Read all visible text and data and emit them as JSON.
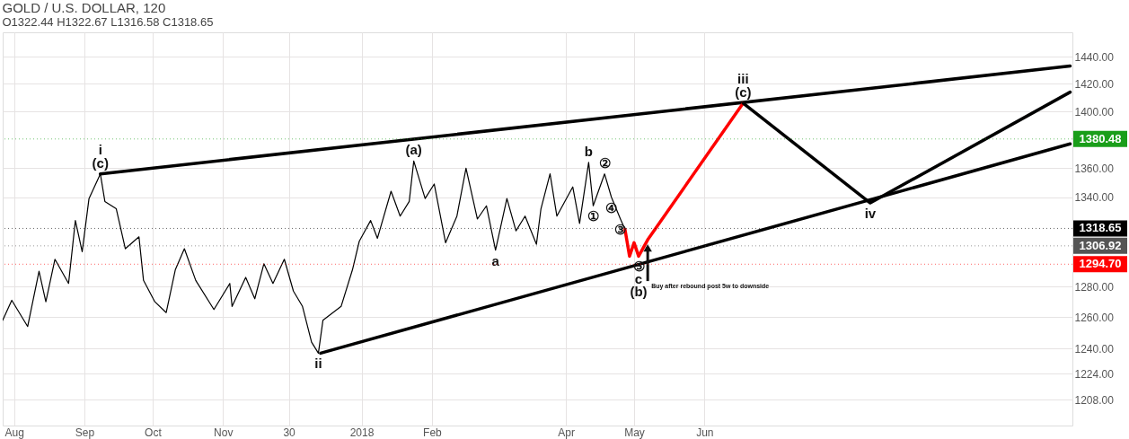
{
  "chart_data": {
    "type": "line",
    "title": "GOLD / U.S. DOLLAR, 120",
    "subtitle": "O1322.44  H1322.67  L1316.58  C1318.65",
    "log": "y",
    "grid": true,
    "xlim": [
      "2017-07-27",
      "2018-11-10"
    ],
    "xticks": [
      {
        "value": "2017-08-01",
        "label": "Aug"
      },
      {
        "value": "2017-09-01",
        "label": "Sep"
      },
      {
        "value": "2017-10-01",
        "label": "Oct"
      },
      {
        "value": "2017-11-01",
        "label": "Nov"
      },
      {
        "value": "2017-11-30",
        "label": "30"
      },
      {
        "value": "2018-01-01",
        "label": "2018"
      },
      {
        "value": "2018-02-01",
        "label": "Feb"
      },
      {
        "value": "2018-04-01",
        "label": "Apr"
      },
      {
        "value": "2018-05-01",
        "label": "May"
      },
      {
        "value": "2018-06-01",
        "label": "Jun"
      }
    ],
    "ylim": [
      1192,
      1458
    ],
    "yticks": [
      {
        "value": 1208,
        "label": "1208.00"
      },
      {
        "value": 1224,
        "label": "1224.00"
      },
      {
        "value": 1240,
        "label": "1240.00"
      },
      {
        "value": 1260,
        "label": "1260.00"
      },
      {
        "value": 1280,
        "label": "1280.00"
      },
      {
        "value": 1340,
        "label": "1340.00"
      },
      {
        "value": 1360,
        "label": "1360.00"
      },
      {
        "value": 1400,
        "label": "1400.00"
      },
      {
        "value": 1420,
        "label": "1420.00"
      },
      {
        "value": 1440,
        "label": "1440.00"
      }
    ],
    "series": [
      {
        "color": "#000000",
        "x": [
          "2017-07-27",
          "2017-07-31",
          "2017-08-07",
          "2017-08-12",
          "2017-08-15",
          "2017-08-19",
          "2017-08-25",
          "2017-08-28",
          "2017-08-31",
          "2017-09-03",
          "2017-09-08",
          "2017-09-10",
          "2017-09-15",
          "2017-09-19",
          "2017-09-25",
          "2017-09-27",
          "2017-10-02",
          "2017-10-07",
          "2017-10-11",
          "2017-10-15",
          "2017-10-20",
          "2017-10-28",
          "2017-11-04",
          "2017-11-05",
          "2017-11-11",
          "2017-11-15",
          "2017-11-19",
          "2017-11-23",
          "2017-11-28",
          "2017-12-02",
          "2017-12-06",
          "2017-12-10",
          "2017-12-13",
          "2017-12-15",
          "2017-12-23",
          "2017-12-28",
          "2017-12-31",
          "2018-01-05",
          "2018-01-08",
          "2018-01-14",
          "2018-01-18",
          "2018-01-22",
          "2018-01-24",
          "2018-01-29",
          "2018-02-02",
          "2018-02-07",
          "2018-02-12",
          "2018-02-16",
          "2018-02-21",
          "2018-02-25",
          "2018-03-01",
          "2018-03-06",
          "2018-03-10",
          "2018-03-14",
          "2018-03-19",
          "2018-03-21",
          "2018-03-25",
          "2018-03-28",
          "2018-04-04",
          "2018-04-07",
          "2018-04-11",
          "2018-04-13",
          "2018-04-18",
          "2018-04-21",
          "2018-04-25",
          "2018-04-27"
        ],
        "values": [
          1258,
          1271,
          1254,
          1290,
          1270,
          1298,
          1282,
          1324,
          1303,
          1339,
          1356,
          1337,
          1332,
          1305,
          1313,
          1284,
          1270,
          1263,
          1291,
          1305,
          1284,
          1265,
          1282,
          1267,
          1286,
          1272,
          1295,
          1282,
          1298,
          1277,
          1267,
          1244,
          1237,
          1258,
          1267,
          1291,
          1310,
          1324,
          1312,
          1344,
          1327,
          1337,
          1365,
          1339,
          1349,
          1309,
          1327,
          1360,
          1325,
          1334,
          1304,
          1339,
          1317,
          1327,
          1308,
          1332,
          1356,
          1327,
          1347,
          1322,
          1364,
          1334,
          1356,
          1340,
          1325,
          1318
        ]
      },
      {
        "color": "#000000",
        "x": [
          "2017-09-08",
          "2018-11-09"
        ],
        "values": [
          1356,
          1433
        ]
      },
      {
        "color": "#000000",
        "x": [
          "2017-12-14",
          "2018-11-09"
        ],
        "values": [
          1237,
          1377
        ]
      },
      {
        "color": "#ff0000",
        "x": [
          "2018-04-27",
          "2018-04-29",
          "2018-05-01",
          "2018-05-03",
          "2018-05-07",
          "2018-06-18"
        ],
        "values": [
          1318,
          1300,
          1309,
          1300,
          1311,
          1406
        ]
      },
      {
        "color": "#000000",
        "x": [
          "2018-06-18",
          "2018-08-13",
          "2018-11-09"
        ],
        "values": [
          1406,
          1336,
          1414
        ]
      }
    ],
    "ref_lines": [
      {
        "axis": "y",
        "value": 1380.48,
        "label": "1380.48",
        "color": "#1a9e1a"
      },
      {
        "axis": "y",
        "value": 1318.65,
        "label": "1318.65",
        "color": "#000000"
      },
      {
        "axis": "y",
        "value": 1306.92,
        "label": "1306.92",
        "color": "#555555"
      },
      {
        "axis": "y",
        "value": 1294.7,
        "label": "1294.70",
        "color": "#ff0000"
      }
    ],
    "annotations": [
      {
        "text": "i",
        "x": "2017-09-08",
        "y": 1356
      },
      {
        "text": "(c)",
        "x": "2017-09-08",
        "y": 1356
      },
      {
        "text": "ii",
        "x": "2017-12-13",
        "y": 1237
      },
      {
        "text": "(a)",
        "x": "2018-01-24",
        "y": 1365
      },
      {
        "text": "a",
        "x": "2018-03-01",
        "y": 1304
      },
      {
        "text": "b",
        "x": "2018-04-11",
        "y": 1364
      },
      {
        "text": "②",
        "x": "2018-04-18",
        "y": 1356
      },
      {
        "text": "④",
        "x": "2018-04-21",
        "y": 1340
      },
      {
        "text": "①",
        "x": "2018-04-13",
        "y": 1334
      },
      {
        "text": "③",
        "x": "2018-04-25",
        "y": 1325
      },
      {
        "text": "⑤",
        "x": "2018-05-03",
        "y": 1300
      },
      {
        "text": "c",
        "x": "2018-05-03",
        "y": 1300
      },
      {
        "text": "(b)",
        "x": "2018-05-03",
        "y": 1300
      },
      {
        "text": "iii",
        "x": "2018-06-18",
        "y": 1406
      },
      {
        "text": "(c)",
        "x": "2018-06-18",
        "y": 1406
      },
      {
        "text": "iv",
        "x": "2018-08-13",
        "y": 1336
      },
      {
        "text": "Buy after rebound post 5w to downside",
        "x": "2018-05-07",
        "y": 1311
      }
    ]
  }
}
